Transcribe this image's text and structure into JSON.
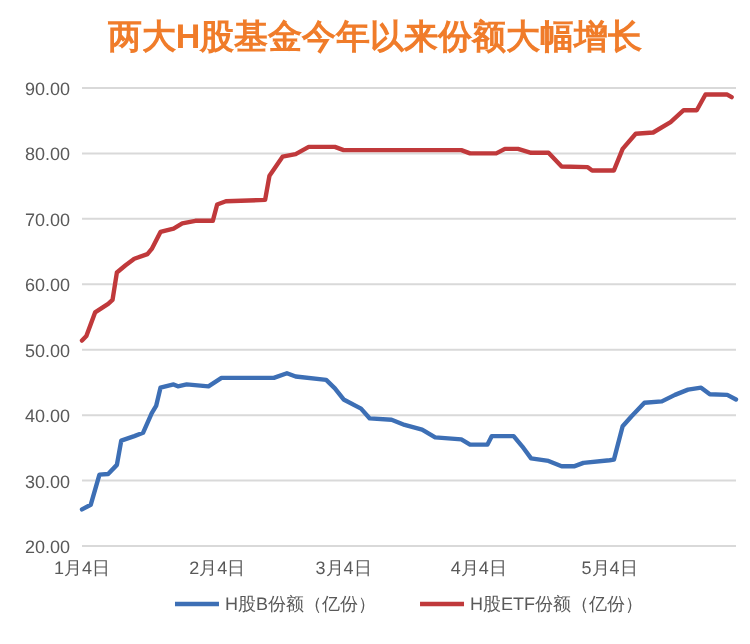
{
  "chart_data": {
    "type": "line",
    "title": "两大H股基金今年以来份额大幅增长",
    "xlim": [
      "--01-04",
      "--06-02"
    ],
    "xticks": [
      {
        "value": "--01-04",
        "label": "1月4日"
      },
      {
        "value": "--02-04",
        "label": "2月4日"
      },
      {
        "value": "--03-04",
        "label": "3月4日"
      },
      {
        "value": "--04-04",
        "label": "4月4日"
      },
      {
        "value": "--05-04",
        "label": "5月4日"
      }
    ],
    "ylim": [
      20,
      90
    ],
    "yticks": [
      {
        "value": 20,
        "label": "20.00"
      },
      {
        "value": 30,
        "label": "30.00"
      },
      {
        "value": 40,
        "label": "40.00"
      },
      {
        "value": 50,
        "label": "50.00"
      },
      {
        "value": 60,
        "label": "60.00"
      },
      {
        "value": 70,
        "label": "70.00"
      },
      {
        "value": 80,
        "label": "80.00"
      },
      {
        "value": 90,
        "label": "90.00"
      }
    ],
    "grid": "y",
    "legend": "bottom",
    "series": [
      {
        "name": "H股B份额（亿份）",
        "color": "#3d6fb5",
        "x": [
          "--01-04",
          "--01-06",
          "--01-08",
          "--01-10",
          "--01-12",
          "--01-13",
          "--01-16",
          "--01-18",
          "--01-20",
          "--01-21",
          "--01-22",
          "--01-25",
          "--01-26",
          "--01-28",
          "--02-02",
          "--02-05",
          "--02-17",
          "--02-20",
          "--02-22",
          "--02-29",
          "--03-02",
          "--03-04",
          "--03-08",
          "--03-10",
          "--03-15",
          "--03-18",
          "--03-22",
          "--03-25",
          "--03-31",
          "--04-02",
          "--04-06",
          "--04-07",
          "--04-12",
          "--04-14",
          "--04-16",
          "--04-20",
          "--04-23",
          "--04-26",
          "--04-28",
          "--05-04",
          "--05-05",
          "--05-07",
          "--05-09",
          "--05-12",
          "--05-16",
          "--05-19",
          "--05-22",
          "--05-25",
          "--05-27",
          "--05-31",
          "--06-02"
        ],
        "values": [
          25.6,
          26.3,
          30.9,
          31.0,
          32.4,
          36.1,
          36.8,
          37.3,
          40.3,
          41.4,
          44.2,
          44.7,
          44.4,
          44.7,
          44.4,
          45.7,
          45.7,
          46.4,
          45.9,
          45.4,
          44.1,
          42.4,
          41.0,
          39.5,
          39.3,
          38.5,
          37.8,
          36.6,
          36.3,
          35.5,
          35.5,
          36.8,
          36.8,
          35.2,
          33.4,
          33.0,
          32.2,
          32.2,
          32.7,
          33.1,
          33.2,
          38.3,
          39.8,
          41.9,
          42.1,
          43.1,
          43.9,
          44.2,
          43.2,
          43.1,
          42.4
        ]
      },
      {
        "name": "H股ETF份额（亿份）",
        "color": "#c0393b",
        "x": [
          "--01-04",
          "--01-05",
          "--01-07",
          "--01-10",
          "--01-11",
          "--01-12",
          "--01-14",
          "--01-16",
          "--01-19",
          "--01-20",
          "--01-22",
          "--01-25",
          "--01-27",
          "--01-30",
          "--02-03",
          "--02-04",
          "--02-06",
          "--02-15",
          "--02-16",
          "--02-19",
          "--02-22",
          "--02-25",
          "--03-02",
          "--03-04",
          "--03-17",
          "--03-31",
          "--04-02",
          "--04-08",
          "--04-10",
          "--04-13",
          "--04-16",
          "--04-20",
          "--04-23",
          "--04-29",
          "--04-30",
          "--05-05",
          "--05-07",
          "--05-10",
          "--05-14",
          "--05-18",
          "--05-21",
          "--05-24",
          "--05-26",
          "--05-31",
          "--06-01"
        ],
        "values": [
          51.4,
          52.1,
          55.7,
          57.0,
          57.6,
          61.8,
          62.9,
          63.9,
          64.6,
          65.4,
          68.0,
          68.5,
          69.3,
          69.7,
          69.7,
          72.2,
          72.7,
          72.9,
          76.6,
          79.5,
          79.9,
          81.0,
          81.0,
          80.5,
          80.5,
          80.5,
          80.0,
          80.0,
          80.7,
          80.7,
          80.1,
          80.1,
          78.0,
          77.9,
          77.4,
          77.4,
          80.7,
          83.0,
          83.2,
          84.8,
          86.6,
          86.6,
          89.0,
          89.0,
          88.6
        ]
      }
    ]
  }
}
